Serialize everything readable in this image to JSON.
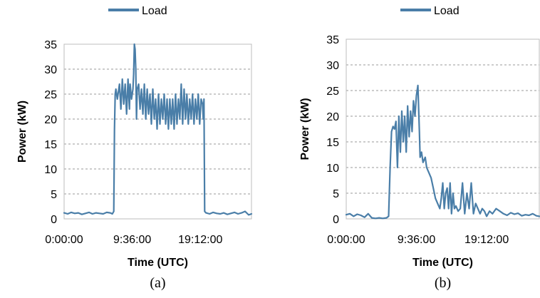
{
  "colors": {
    "series": "#4a7ea8",
    "grid": "#9a9a9a"
  },
  "chart_data": [
    {
      "type": "line",
      "panel_label": "(a)",
      "title": "",
      "xlabel": "Time (UTC)",
      "ylabel": "Power (kW)",
      "ylim": [
        0,
        35
      ],
      "y_ticks": [
        0,
        5,
        10,
        15,
        20,
        25,
        30,
        35
      ],
      "xlim": [
        0,
        26.4
      ],
      "x_ticks": [
        0,
        9.6,
        19.2
      ],
      "x_tick_labels": [
        "0:00:00",
        "9:36:00",
        "19:12:00"
      ],
      "grid": "horizontal dashed",
      "legend": "top-left",
      "series": [
        {
          "name": "Load",
          "x": [
            0,
            0.5,
            1,
            1.5,
            2,
            2.5,
            3,
            3.5,
            4,
            4.5,
            5,
            5.5,
            6,
            6.5,
            6.8,
            7.0,
            7.1,
            7.2,
            7.3,
            7.5,
            7.8,
            8.0,
            8.2,
            8.4,
            8.6,
            8.8,
            9.0,
            9.2,
            9.3,
            9.5,
            9.7,
            9.8,
            9.9,
            10.0,
            10.1,
            10.2,
            10.3,
            10.5,
            10.7,
            10.9,
            11.1,
            11.3,
            11.5,
            11.7,
            11.9,
            12.1,
            12.3,
            12.5,
            12.7,
            12.9,
            13.1,
            13.3,
            13.5,
            13.7,
            13.9,
            14.1,
            14.3,
            14.5,
            14.7,
            14.9,
            15.1,
            15.3,
            15.5,
            15.7,
            15.9,
            16.1,
            16.3,
            16.5,
            16.7,
            16.9,
            17.1,
            17.3,
            17.5,
            17.7,
            17.9,
            18.1,
            18.3,
            18.5,
            18.7,
            18.9,
            19.1,
            19.3,
            19.5,
            19.6,
            19.7,
            19.8,
            20.0,
            20.5,
            21,
            21.5,
            22,
            22.5,
            23,
            23.5,
            24,
            24.5,
            25,
            25.5,
            26,
            26.4
          ],
          "y": [
            1.2,
            1.0,
            1.3,
            1.1,
            1.2,
            0.9,
            1.1,
            1.3,
            1.0,
            1.2,
            1.1,
            1.0,
            1.3,
            1.2,
            1.0,
            1.5,
            18,
            25,
            26,
            24,
            27,
            22,
            28,
            23,
            27,
            21,
            28,
            22,
            27,
            24,
            26,
            29,
            35,
            34,
            30,
            20,
            26,
            27,
            22,
            26,
            21,
            27,
            20,
            26,
            21,
            25,
            19,
            26,
            20,
            24,
            18,
            25,
            19,
            24,
            20,
            25,
            19,
            24,
            18,
            24,
            19,
            24,
            18,
            25,
            19,
            24,
            20,
            27,
            19,
            26,
            20,
            25,
            19,
            24,
            20,
            25,
            19,
            24,
            20,
            25,
            19,
            24,
            23,
            20,
            24,
            1.5,
            1.2,
            1.0,
            1.3,
            1.1,
            1.0,
            1.2,
            0.9,
            1.1,
            1.3,
            1.0,
            1.2,
            1.5,
            0.8,
            1.0
          ]
        }
      ]
    },
    {
      "type": "line",
      "panel_label": "(b)",
      "title": "",
      "xlabel": "Time (UTC)",
      "ylabel": "Power (kW)",
      "ylim": [
        0,
        35
      ],
      "y_ticks": [
        0,
        5,
        10,
        15,
        20,
        25,
        30,
        35
      ],
      "xlim": [
        0,
        26.4
      ],
      "x_ticks": [
        0,
        9.6,
        19.2
      ],
      "x_tick_labels": [
        "0:00:00",
        "9:36:00",
        "19:12:00"
      ],
      "grid": "horizontal dashed",
      "legend": "top-left",
      "series": [
        {
          "name": "Load",
          "x": [
            0,
            0.5,
            1,
            1.5,
            2,
            2.5,
            3,
            3.5,
            4,
            4.5,
            5,
            5.5,
            5.8,
            6.0,
            6.2,
            6.4,
            6.6,
            6.8,
            7.0,
            7.2,
            7.4,
            7.6,
            7.8,
            8.0,
            8.2,
            8.4,
            8.6,
            8.8,
            9.0,
            9.2,
            9.4,
            9.6,
            9.8,
            10.0,
            10.1,
            10.3,
            10.5,
            10.8,
            11.0,
            11.3,
            11.6,
            11.9,
            12.2,
            12.5,
            12.8,
            13.0,
            13.2,
            13.4,
            13.6,
            13.8,
            14.0,
            14.2,
            14.4,
            14.6,
            14.8,
            15.0,
            15.3,
            15.6,
            15.9,
            16.2,
            16.5,
            16.8,
            17.1,
            17.4,
            17.7,
            18.0,
            18.3,
            18.6,
            18.9,
            19.2,
            19.6,
            20.0,
            20.5,
            21,
            21.5,
            22,
            22.5,
            23,
            23.5,
            24,
            24.5,
            25,
            25.5,
            26,
            26.4
          ],
          "y": [
            0.8,
            1.0,
            0.5,
            0.9,
            0.7,
            0.3,
            1.0,
            0.2,
            0.1,
            0.2,
            0.1,
            0.2,
            0.5,
            10,
            17,
            18,
            17.5,
            19,
            10,
            20,
            13,
            21,
            15,
            20,
            13,
            22,
            16,
            21,
            17,
            23,
            20,
            24,
            26,
            17,
            12,
            13,
            11,
            12,
            10,
            9,
            8,
            6,
            4,
            3,
            2,
            4,
            7,
            2,
            5,
            6,
            2,
            7,
            1,
            5,
            2,
            2.5,
            1.5,
            2,
            7,
            1,
            5,
            2,
            7,
            1,
            3,
            2,
            1,
            2,
            1.5,
            0.5,
            1.5,
            1,
            2,
            1.5,
            1,
            0.7,
            1.2,
            0.9,
            1.1,
            0.6,
            0.8,
            0.7,
            1.0,
            0.6,
            0.5
          ]
        }
      ]
    }
  ]
}
